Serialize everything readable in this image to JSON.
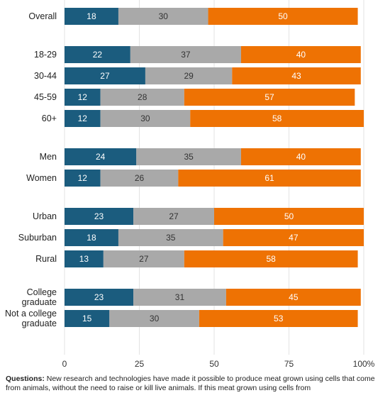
{
  "chart_data": {
    "type": "bar",
    "orientation": "horizontal",
    "stacked": true,
    "xlim": [
      0,
      100
    ],
    "x_ticks": [
      "0",
      "25",
      "50",
      "75",
      "100%"
    ],
    "grid": true,
    "categories": [
      "Overall",
      "18-29",
      "30-44",
      "45-59",
      "60+",
      "Men",
      "Women",
      "Urban",
      "Suburban",
      "Rural",
      "College graduate",
      "Not a college graduate"
    ],
    "category_lines": [
      [
        "Overall"
      ],
      [
        "18-29"
      ],
      [
        "30-44"
      ],
      [
        "45-59"
      ],
      [
        "60+"
      ],
      [
        "Men"
      ],
      [
        "Women"
      ],
      [
        "Urban"
      ],
      [
        "Suburban"
      ],
      [
        "Rural"
      ],
      [
        "College",
        "graduate"
      ],
      [
        "Not a college",
        "graduate"
      ]
    ],
    "groups": [
      [
        0
      ],
      [
        1,
        2,
        3,
        4
      ],
      [
        5,
        6
      ],
      [
        7,
        8,
        9
      ],
      [
        10,
        11
      ]
    ],
    "series": [
      {
        "color": "#1b5c7e",
        "label_color": "#ffffff",
        "values": [
          18,
          22,
          27,
          12,
          12,
          24,
          12,
          23,
          18,
          13,
          23,
          15
        ]
      },
      {
        "color": "#a9a9a9",
        "label_color": "#333333",
        "values": [
          30,
          37,
          29,
          28,
          30,
          35,
          26,
          27,
          35,
          27,
          31,
          30
        ]
      },
      {
        "color": "#ee7203",
        "label_color": "#ffffff",
        "values": [
          50,
          40,
          43,
          57,
          58,
          40,
          61,
          50,
          47,
          58,
          45,
          53
        ]
      }
    ]
  },
  "footnote": {
    "label": "Questions:",
    "text": " New research and technologies have made it possible to produce meat grown using cells that come from animals, without the need to raise or kill live animals. If this meat grown using cells from"
  }
}
